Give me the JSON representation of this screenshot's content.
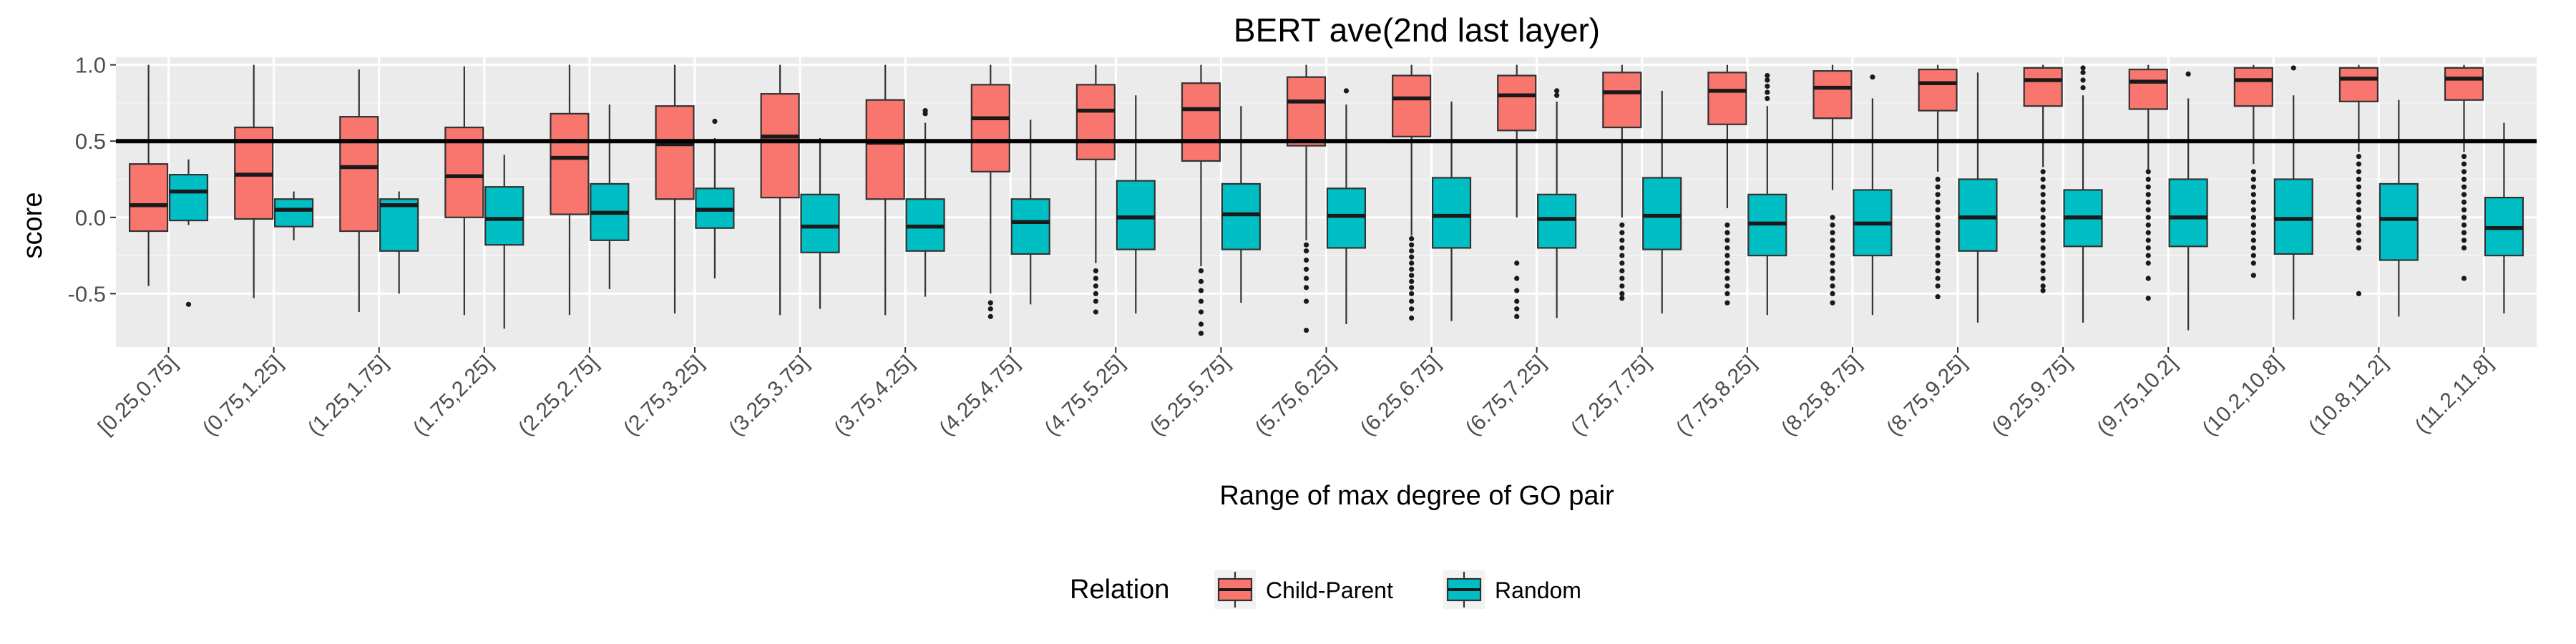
{
  "chart_data": {
    "type": "box",
    "title": "BERT ave(2nd last layer)",
    "xlabel": "Range of max degree of GO pair",
    "ylabel": "score",
    "ylim": [
      -0.85,
      1.05
    ],
    "yticks": [
      1.0,
      0.5,
      0.0,
      -0.5
    ],
    "ytick_labels": [
      "1.0",
      "0.5",
      "0.0",
      "-0.5"
    ],
    "reference_line": 0.5,
    "grid": true,
    "legend": {
      "title": "Relation",
      "position": "bottom"
    },
    "categories": [
      "[0.25,0.75]",
      "(0.75,1.25]",
      "(1.25,1.75]",
      "(1.75,2.25]",
      "(2.25,2.75]",
      "(2.75,3.25]",
      "(3.25,3.75]",
      "(3.75,4.25]",
      "(4.25,4.75]",
      "(4.75,5.25]",
      "(5.25,5.75]",
      "(5.75,6.25]",
      "(6.25,6.75]",
      "(6.75,7.25]",
      "(7.25,7.75]",
      "(7.75,8.25]",
      "(8.25,8.75]",
      "(8.75,9.25]",
      "(9.25,9.75]",
      "(9.75,10.2]",
      "(10.2,10.8]",
      "(10.8,11.2]",
      "(11.2,11.8]"
    ],
    "series": [
      {
        "name": "Child-Parent",
        "color": "#F8766D",
        "boxes": [
          {
            "lw": -0.45,
            "q1": -0.09,
            "med": 0.08,
            "q3": 0.35,
            "uw": 1.0,
            "out": []
          },
          {
            "lw": -0.53,
            "q1": -0.01,
            "med": 0.28,
            "q3": 0.59,
            "uw": 1.0,
            "out": []
          },
          {
            "lw": -0.62,
            "q1": -0.09,
            "med": 0.33,
            "q3": 0.66,
            "uw": 0.97,
            "out": []
          },
          {
            "lw": -0.64,
            "q1": 0.0,
            "med": 0.27,
            "q3": 0.59,
            "uw": 0.99,
            "out": []
          },
          {
            "lw": -0.64,
            "q1": 0.02,
            "med": 0.39,
            "q3": 0.68,
            "uw": 1.0,
            "out": []
          },
          {
            "lw": -0.63,
            "q1": 0.12,
            "med": 0.48,
            "q3": 0.73,
            "uw": 1.0,
            "out": []
          },
          {
            "lw": -0.64,
            "q1": 0.13,
            "med": 0.53,
            "q3": 0.81,
            "uw": 1.0,
            "out": []
          },
          {
            "lw": -0.64,
            "q1": 0.12,
            "med": 0.49,
            "q3": 0.77,
            "uw": 1.0,
            "out": []
          },
          {
            "lw": -0.5,
            "q1": 0.3,
            "med": 0.65,
            "q3": 0.87,
            "uw": 1.0,
            "out": [
              -0.56,
              -0.6,
              -0.65
            ]
          },
          {
            "lw": -0.3,
            "q1": 0.38,
            "med": 0.7,
            "q3": 0.87,
            "uw": 1.0,
            "out": [
              -0.35,
              -0.4,
              -0.45,
              -0.5,
              -0.55,
              -0.62
            ]
          },
          {
            "lw": -0.32,
            "q1": 0.37,
            "med": 0.71,
            "q3": 0.88,
            "uw": 1.0,
            "out": [
              -0.35,
              -0.42,
              -0.48,
              -0.55,
              -0.62,
              -0.7,
              -0.76
            ]
          },
          {
            "lw": -0.15,
            "q1": 0.47,
            "med": 0.76,
            "q3": 0.92,
            "uw": 1.0,
            "out": [
              -0.18,
              -0.22,
              -0.28,
              -0.34,
              -0.4,
              -0.46,
              -0.55,
              -0.74
            ]
          },
          {
            "lw": -0.12,
            "q1": 0.53,
            "med": 0.78,
            "q3": 0.93,
            "uw": 1.0,
            "out": [
              -0.14,
              -0.18,
              -0.22,
              -0.26,
              -0.3,
              -0.34,
              -0.38,
              -0.42,
              -0.46,
              -0.5,
              -0.55,
              -0.6,
              -0.66
            ]
          },
          {
            "lw": 0.0,
            "q1": 0.57,
            "med": 0.8,
            "q3": 0.93,
            "uw": 1.0,
            "out": [
              -0.3,
              -0.4,
              -0.48,
              -0.55,
              -0.6,
              -0.65
            ]
          },
          {
            "lw": 0.0,
            "q1": 0.59,
            "med": 0.82,
            "q3": 0.95,
            "uw": 1.0,
            "out": [
              -0.05,
              -0.1,
              -0.15,
              -0.2,
              -0.25,
              -0.3,
              -0.35,
              -0.4,
              -0.45,
              -0.5,
              -0.53
            ]
          },
          {
            "lw": 0.06,
            "q1": 0.61,
            "med": 0.83,
            "q3": 0.95,
            "uw": 1.0,
            "out": [
              -0.05,
              -0.1,
              -0.15,
              -0.2,
              -0.25,
              -0.3,
              -0.35,
              -0.4,
              -0.45,
              -0.5,
              -0.56
            ]
          },
          {
            "lw": 0.18,
            "q1": 0.65,
            "med": 0.85,
            "q3": 0.96,
            "uw": 1.0,
            "out": [
              0.0,
              -0.05,
              -0.1,
              -0.15,
              -0.2,
              -0.25,
              -0.3,
              -0.35,
              -0.4,
              -0.45,
              -0.5,
              -0.56
            ]
          },
          {
            "lw": 0.3,
            "q1": 0.7,
            "med": 0.88,
            "q3": 0.97,
            "uw": 1.0,
            "out": [
              0.25,
              0.2,
              0.15,
              0.1,
              0.05,
              0.0,
              -0.05,
              -0.1,
              -0.15,
              -0.2,
              -0.25,
              -0.3,
              -0.35,
              -0.4,
              -0.45,
              -0.52
            ]
          },
          {
            "lw": 0.33,
            "q1": 0.73,
            "med": 0.9,
            "q3": 0.98,
            "uw": 1.0,
            "out": [
              0.3,
              0.25,
              0.2,
              0.15,
              0.1,
              0.05,
              0.0,
              -0.05,
              -0.1,
              -0.15,
              -0.2,
              -0.25,
              -0.3,
              -0.35,
              -0.4,
              -0.45,
              -0.48
            ]
          },
          {
            "lw": 0.3,
            "q1": 0.71,
            "med": 0.89,
            "q3": 0.97,
            "uw": 1.0,
            "out": [
              0.3,
              0.25,
              0.2,
              0.15,
              0.1,
              0.05,
              0.0,
              -0.05,
              -0.1,
              -0.15,
              -0.2,
              -0.25,
              -0.3,
              -0.4,
              -0.53
            ]
          },
          {
            "lw": 0.35,
            "q1": 0.73,
            "med": 0.9,
            "q3": 0.98,
            "uw": 1.0,
            "out": [
              0.3,
              0.25,
              0.2,
              0.15,
              0.1,
              0.05,
              0.0,
              -0.05,
              -0.1,
              -0.15,
              -0.2,
              -0.25,
              -0.3,
              -0.38
            ]
          },
          {
            "lw": 0.43,
            "q1": 0.76,
            "med": 0.91,
            "q3": 0.98,
            "uw": 1.0,
            "out": [
              0.4,
              0.35,
              0.3,
              0.25,
              0.2,
              0.15,
              0.1,
              0.05,
              0.0,
              -0.05,
              -0.1,
              -0.15,
              -0.2,
              -0.5
            ]
          },
          {
            "lw": 0.43,
            "q1": 0.77,
            "med": 0.91,
            "q3": 0.98,
            "uw": 1.0,
            "out": [
              0.4,
              0.35,
              0.3,
              0.25,
              0.2,
              0.15,
              0.1,
              0.05,
              0.0,
              -0.05,
              -0.1,
              -0.15,
              -0.2,
              -0.4
            ]
          }
        ]
      },
      {
        "name": "Random",
        "color": "#00BFC4",
        "boxes": [
          {
            "lw": -0.05,
            "q1": -0.02,
            "med": 0.17,
            "q3": 0.28,
            "uw": 0.38,
            "out": [
              -0.57
            ]
          },
          {
            "lw": -0.15,
            "q1": -0.06,
            "med": 0.05,
            "q3": 0.12,
            "uw": 0.17,
            "out": []
          },
          {
            "lw": -0.5,
            "q1": -0.22,
            "med": 0.08,
            "q3": 0.12,
            "uw": 0.17,
            "out": []
          },
          {
            "lw": -0.73,
            "q1": -0.18,
            "med": -0.01,
            "q3": 0.2,
            "uw": 0.41,
            "out": []
          },
          {
            "lw": -0.47,
            "q1": -0.15,
            "med": 0.03,
            "q3": 0.22,
            "uw": 0.74,
            "out": []
          },
          {
            "lw": -0.4,
            "q1": -0.07,
            "med": 0.05,
            "q3": 0.19,
            "uw": 0.52,
            "out": [
              0.63
            ]
          },
          {
            "lw": -0.6,
            "q1": -0.23,
            "med": -0.06,
            "q3": 0.15,
            "uw": 0.52,
            "out": []
          },
          {
            "lw": -0.52,
            "q1": -0.22,
            "med": -0.06,
            "q3": 0.12,
            "uw": 0.62,
            "out": [
              0.68,
              0.7
            ]
          },
          {
            "lw": -0.57,
            "q1": -0.24,
            "med": -0.03,
            "q3": 0.12,
            "uw": 0.64,
            "out": []
          },
          {
            "lw": -0.63,
            "q1": -0.21,
            "med": 0.0,
            "q3": 0.24,
            "uw": 0.8,
            "out": []
          },
          {
            "lw": -0.56,
            "q1": -0.21,
            "med": 0.02,
            "q3": 0.22,
            "uw": 0.73,
            "out": []
          },
          {
            "lw": -0.7,
            "q1": -0.2,
            "med": 0.01,
            "q3": 0.19,
            "uw": 0.74,
            "out": [
              0.83
            ]
          },
          {
            "lw": -0.68,
            "q1": -0.2,
            "med": 0.01,
            "q3": 0.26,
            "uw": 0.76,
            "out": []
          },
          {
            "lw": -0.66,
            "q1": -0.2,
            "med": -0.01,
            "q3": 0.15,
            "uw": 0.76,
            "out": [
              0.8,
              0.83
            ]
          },
          {
            "lw": -0.63,
            "q1": -0.21,
            "med": 0.01,
            "q3": 0.26,
            "uw": 0.83,
            "out": []
          },
          {
            "lw": -0.64,
            "q1": -0.25,
            "med": -0.04,
            "q3": 0.15,
            "uw": 0.73,
            "out": [
              0.78,
              0.82,
              0.86,
              0.9,
              0.93
            ]
          },
          {
            "lw": -0.64,
            "q1": -0.25,
            "med": -0.04,
            "q3": 0.18,
            "uw": 0.78,
            "out": [
              0.92
            ]
          },
          {
            "lw": -0.69,
            "q1": -0.22,
            "med": 0.0,
            "q3": 0.25,
            "uw": 0.95,
            "out": []
          },
          {
            "lw": -0.69,
            "q1": -0.19,
            "med": 0.0,
            "q3": 0.18,
            "uw": 0.8,
            "out": [
              0.85,
              0.9,
              0.95,
              0.98
            ]
          },
          {
            "lw": -0.74,
            "q1": -0.19,
            "med": 0.0,
            "q3": 0.25,
            "uw": 0.78,
            "out": [
              0.94
            ]
          },
          {
            "lw": -0.67,
            "q1": -0.24,
            "med": -0.01,
            "q3": 0.25,
            "uw": 0.8,
            "out": [
              0.98
            ]
          },
          {
            "lw": -0.65,
            "q1": -0.28,
            "med": -0.01,
            "q3": 0.22,
            "uw": 0.77,
            "out": []
          },
          {
            "lw": -0.63,
            "q1": -0.25,
            "med": -0.07,
            "q3": 0.13,
            "uw": 0.62,
            "out": []
          }
        ]
      }
    ]
  }
}
